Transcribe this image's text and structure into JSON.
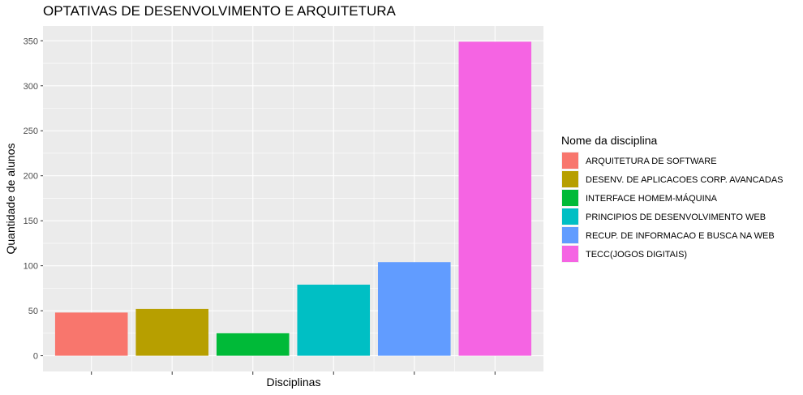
{
  "chart_data": {
    "type": "bar",
    "title": "OPTATIVAS DE DESENVOLVIMENTO E ARQUITETURA",
    "xlabel": "Disciplinas",
    "ylabel": "Quantidade de alunos",
    "categories": [
      "ARQUITETURA DE SOFTWARE",
      "DESENV. DE APLICACOES CORP. AVANCADAS",
      "INTERFACE HOMEM-MÁQUINA",
      "PRINCIPIOS DE DESENVOLVIMENTO WEB",
      "RECUP. DE INFORMACAO E BUSCA NA WEB",
      "TECC(JOGOS DIGITAIS)"
    ],
    "values": [
      48,
      52,
      25,
      79,
      104,
      349
    ],
    "colors": [
      "#F8766D",
      "#B79F00",
      "#00BA38",
      "#00BFC4",
      "#619CFF",
      "#F564E3"
    ],
    "ylim": [
      -17.5,
      366.5
    ],
    "yticks": [
      0,
      50,
      100,
      150,
      200,
      250,
      300,
      350
    ],
    "grid": true,
    "panel_background": "#EBEBEB",
    "legend_title": "Nome da disciplina",
    "legend_position": "right"
  }
}
